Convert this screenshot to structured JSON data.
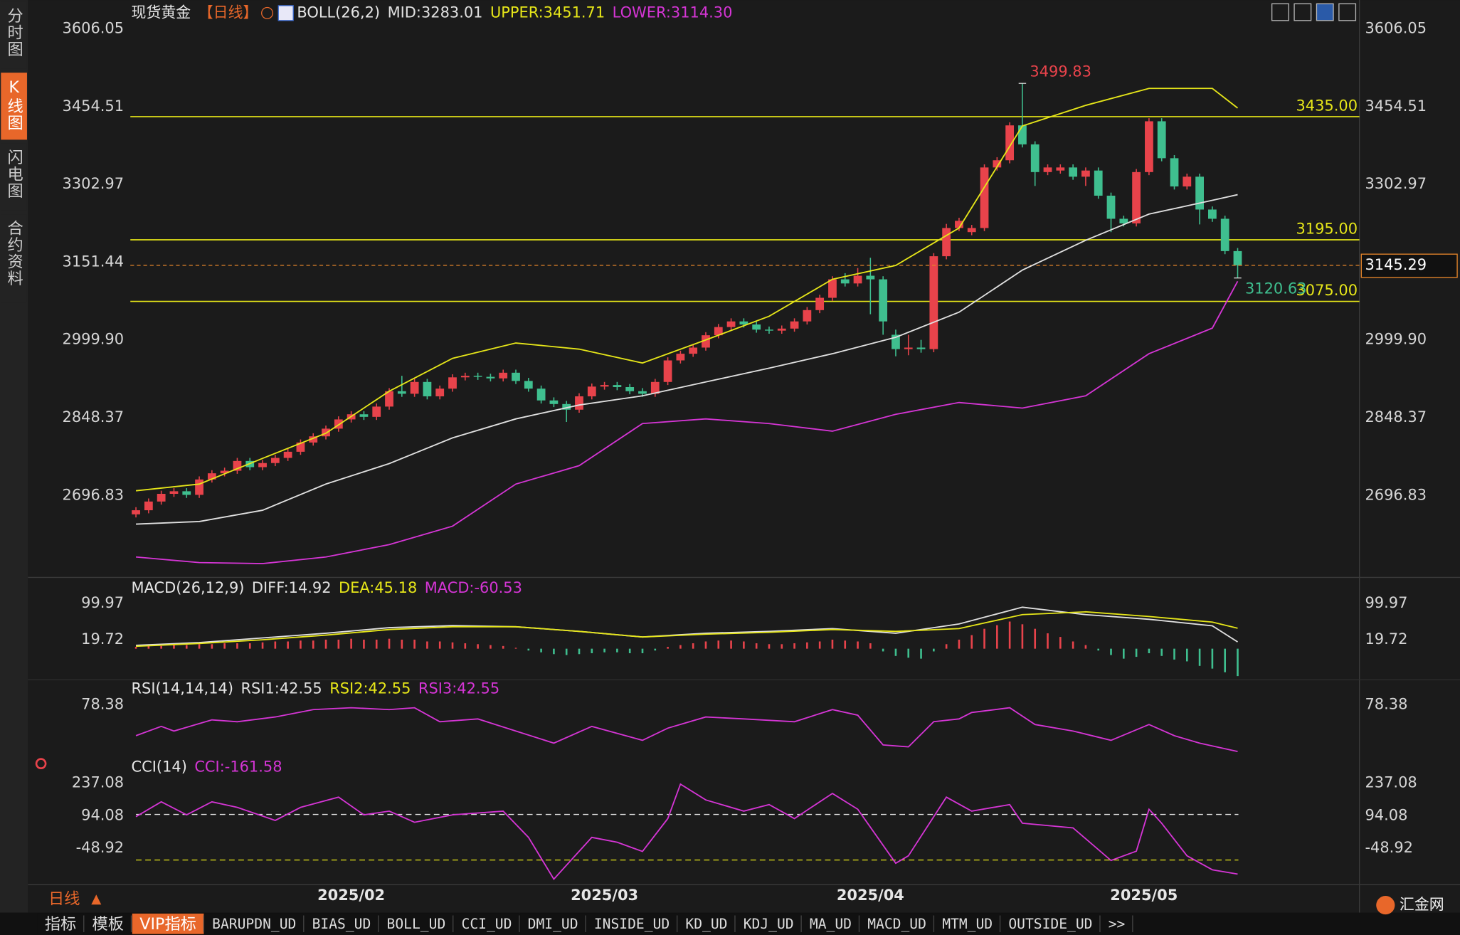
{
  "sidebar": {
    "tabs": [
      "分时图",
      "K线图",
      "闪电图",
      "合约资料"
    ],
    "active": 1
  },
  "chart_data": [
    {
      "type": "candlestick",
      "title": "现货黄金",
      "period": "【日线】",
      "indicator": "BOLL(26,2)",
      "up_color": "#e8434b",
      "down_color": "#3fbf8f",
      "open": [
        2660,
        2668,
        2685,
        2700,
        2705,
        2698,
        2728,
        2740,
        2745,
        2764,
        2752,
        2760,
        2770,
        2782,
        2800,
        2812,
        2827,
        2845,
        2855,
        2850,
        2870,
        2900,
        2895,
        2918,
        2890,
        2905,
        2927,
        2930,
        2928,
        2925,
        2936,
        2920,
        2905,
        2882,
        2875,
        2864,
        2890,
        2909,
        2912,
        2908,
        2900,
        2895,
        2918,
        2960,
        2973,
        2985,
        3009,
        3025,
        3036,
        3030,
        3020,
        3018,
        3022,
        3036,
        3058,
        3082,
        3118,
        3110,
        3125,
        3118,
        3010,
        2982,
        2985,
        2982,
        3163,
        3218,
        3210,
        3218,
        3336,
        3350,
        3418,
        3381,
        3327,
        3330,
        3336,
        3318,
        3330,
        3281,
        3236,
        3227,
        3327,
        3426,
        3354,
        3299,
        3318,
        3254,
        3236,
        3173
      ],
      "high": [
        2674,
        2691,
        2706,
        2711,
        2711,
        2734,
        2746,
        2751,
        2770,
        2770,
        2766,
        2776,
        2788,
        2806,
        2818,
        2833,
        2851,
        2861,
        2861,
        2876,
        2906,
        2930,
        2924,
        2924,
        2911,
        2933,
        2936,
        2936,
        2934,
        2942,
        2942,
        2926,
        2911,
        2888,
        2881,
        2896,
        2915,
        2918,
        2918,
        2914,
        2906,
        2924,
        2966,
        2979,
        2991,
        3015,
        3031,
        3042,
        3042,
        3036,
        3026,
        3028,
        3042,
        3064,
        3088,
        3124,
        3130,
        3140,
        3160,
        3124,
        3020,
        3010,
        3000,
        3169,
        3226,
        3238,
        3224,
        3342,
        3356,
        3424,
        3499.83,
        3387,
        3342,
        3342,
        3342,
        3336,
        3336,
        3287,
        3242,
        3333,
        3432,
        3432,
        3360,
        3324,
        3324,
        3260,
        3242,
        3179
      ],
      "low": [
        2654,
        2662,
        2679,
        2694,
        2692,
        2692,
        2722,
        2734,
        2739,
        2746,
        2746,
        2754,
        2764,
        2776,
        2794,
        2806,
        2821,
        2839,
        2844,
        2844,
        2864,
        2889,
        2889,
        2884,
        2884,
        2899,
        2921,
        2922,
        2919,
        2919,
        2914,
        2899,
        2876,
        2869,
        2840,
        2858,
        2884,
        2903,
        2902,
        2894,
        2889,
        2889,
        2912,
        2954,
        2967,
        2979,
        3003,
        3019,
        3024,
        3014,
        3012,
        3012,
        3016,
        3030,
        3052,
        3076,
        3104,
        3104,
        3050,
        3010,
        2968,
        2970,
        2975,
        2976,
        3157,
        3212,
        3204,
        3212,
        3330,
        3344,
        3375,
        3300,
        3321,
        3324,
        3312,
        3300,
        3275,
        3210,
        3221,
        3221,
        3321,
        3348,
        3293,
        3293,
        3225,
        3230,
        3167,
        3120.63
      ],
      "close": [
        2668,
        2685,
        2700,
        2705,
        2698,
        2728,
        2740,
        2745,
        2764,
        2752,
        2760,
        2770,
        2782,
        2800,
        2812,
        2827,
        2845,
        2855,
        2850,
        2870,
        2900,
        2895,
        2918,
        2890,
        2905,
        2927,
        2930,
        2928,
        2925,
        2936,
        2920,
        2905,
        2882,
        2875,
        2864,
        2890,
        2909,
        2912,
        2908,
        2900,
        2895,
        2918,
        2960,
        2973,
        2985,
        3009,
        3025,
        3036,
        3030,
        3020,
        3018,
        3022,
        3036,
        3058,
        3082,
        3118,
        3110,
        3125,
        3118,
        3036,
        2982,
        2985,
        2982,
        3163,
        3218,
        3232,
        3218,
        3336,
        3350,
        3418,
        3381,
        3327,
        3336,
        3336,
        3318,
        3330,
        3281,
        3236,
        3227,
        3327,
        3426,
        3354,
        3299,
        3318,
        3254,
        3236,
        3173,
        3145.29
      ],
      "series": [
        {
          "name": "MID:3283.01",
          "color": "#e0e0e0",
          "x": [
            0,
            5,
            10,
            15,
            20,
            25,
            30,
            35,
            40,
            45,
            50,
            55,
            60,
            65,
            70,
            75,
            80,
            85,
            87
          ],
          "values": [
            2641,
            2646,
            2668,
            2719,
            2759,
            2809,
            2846,
            2873,
            2891,
            2918,
            2945,
            2973,
            3005,
            3054,
            3136,
            3194,
            3245,
            3272,
            3283.01
          ]
        },
        {
          "name": "UPPER:3451.71",
          "color": "#e6e619",
          "x": [
            0,
            5,
            10,
            15,
            20,
            25,
            30,
            35,
            40,
            45,
            50,
            55,
            60,
            65,
            70,
            75,
            80,
            85,
            87
          ],
          "values": [
            2706,
            2719,
            2769,
            2818,
            2900,
            2964,
            2994,
            2982,
            2955,
            3000,
            3046,
            3118,
            3145,
            3218,
            3417,
            3457,
            3490,
            3490,
            3451.71
          ]
        },
        {
          "name": "LOWER:3114.30",
          "color": "#d535d5",
          "x": [
            0,
            5,
            10,
            15,
            20,
            25,
            30,
            35,
            40,
            45,
            50,
            55,
            60,
            65,
            70,
            75,
            80,
            85,
            87
          ],
          "values": [
            2577,
            2566,
            2564,
            2577,
            2601,
            2637,
            2719,
            2755,
            2837,
            2846,
            2837,
            2822,
            2855,
            2878,
            2867,
            2891,
            2973,
            3023,
            3114.3
          ]
        }
      ],
      "levels": [
        {
          "value": 3435,
          "label": "3435.00"
        },
        {
          "value": 3195,
          "label": "3195.00"
        },
        {
          "value": 3075,
          "label": "3075.00"
        }
      ],
      "level_color": "#e6e619",
      "last_price": 3145.29,
      "last_color": "#e8872a",
      "ylim": [
        2540.8,
        3653.2
      ],
      "yticks": [
        3606.05,
        3454.51,
        3302.97,
        3151.44,
        {
          "value": 2999.9,
          "label": "2999.90"
        },
        2848.37,
        2696.83
      ],
      "x_labels": [
        {
          "index": 17,
          "label": "2025/02"
        },
        {
          "index": 37,
          "label": "2025/03"
        },
        {
          "index": 58,
          "label": "2025/04"
        },
        {
          "index": 79.6,
          "label": "2025/05"
        }
      ]
    },
    {
      "type": "macd",
      "title": "MACD(26,12,9)",
      "series": [
        {
          "name": "DIFF:14.92",
          "color": "#e0e0e0",
          "x": [
            0,
            5,
            10,
            15,
            20,
            25,
            30,
            35,
            40,
            45,
            50,
            55,
            60,
            65,
            70,
            75,
            80,
            85,
            87
          ],
          "values": [
            7.4,
            13.5,
            23.8,
            34.1,
            46.5,
            51.1,
            48.5,
            38.2,
            25.9,
            34.1,
            38.2,
            44.4,
            34.1,
            54.7,
            91.7,
            75.3,
            65.0,
            50.6,
            14.92
          ]
        },
        {
          "name": "DEA:45.18",
          "color": "#e6e619",
          "x": [
            0,
            5,
            10,
            15,
            20,
            25,
            30,
            35,
            40,
            45,
            50,
            55,
            60,
            65,
            70,
            75,
            80,
            85,
            87
          ],
          "values": [
            5.3,
            11.5,
            19.7,
            30.0,
            42.4,
            48.5,
            48.5,
            38.2,
            25.9,
            32.1,
            36.2,
            42.4,
            38.2,
            44.4,
            75.3,
            81.4,
            71.2,
            58.8,
            45.18
          ]
        }
      ],
      "hist_name": "MACD:-60.53",
      "hist_color": "#d535d5",
      "hist_values": [
        4,
        6,
        6,
        8,
        8,
        10,
        10,
        12,
        12,
        12,
        14,
        16,
        16,
        18,
        18,
        20,
        20,
        22,
        20,
        20,
        22,
        20,
        20,
        16,
        16,
        14,
        12,
        10,
        8,
        6,
        2,
        -4,
        -8,
        -12,
        -14,
        -12,
        -10,
        -8,
        -8,
        -10,
        -10,
        -4,
        4,
        8,
        12,
        16,
        18,
        18,
        16,
        12,
        10,
        10,
        12,
        14,
        16,
        20,
        18,
        16,
        12,
        -6,
        -16,
        -20,
        -22,
        -6,
        10,
        20,
        30,
        44,
        52,
        60,
        54,
        44,
        34,
        26,
        16,
        8,
        -4,
        -14,
        -22,
        -18,
        -10,
        -16,
        -24,
        -28,
        -38,
        -44,
        -52,
        -60.53
      ],
      "ylim": [
        -62.6,
        153.5
      ],
      "yticks": [
        99.97,
        19.72
      ]
    },
    {
      "type": "line",
      "title": "RSI(14,14,14)",
      "series": [
        {
          "name": "RSI1:42.55",
          "color": "#e0e0e0"
        },
        {
          "name": "RSI2:42.55",
          "color": "#e6e619"
        },
        {
          "name": "RSI3:42.55",
          "color": "#d535d5",
          "x": [
            0,
            2,
            3,
            6,
            8,
            11,
            14,
            17,
            20,
            22,
            24,
            27,
            30,
            33,
            36,
            40,
            42,
            45,
            48,
            52,
            55,
            57,
            59,
            61,
            63,
            65,
            66,
            69,
            71,
            74,
            77,
            80,
            82,
            84,
            87
          ],
          "values": [
            54.7,
            61.9,
            58.3,
            66.9,
            65.5,
            69.1,
            74.8,
            76.2,
            74.8,
            76.2,
            65.5,
            67.6,
            58.3,
            49.0,
            61.9,
            51.1,
            60.5,
            69.1,
            67.6,
            65.5,
            74.8,
            70.5,
            47.6,
            46.1,
            65.5,
            67.6,
            72.6,
            76.2,
            63.3,
            58.3,
            51.1,
            63.3,
            54.7,
            49.0,
            42.55
          ]
        }
      ],
      "ylim": [
        33.2,
        95.6
      ],
      "yticks": [
        78.38
      ]
    },
    {
      "type": "line",
      "title": "CCI(14)",
      "series": [
        {
          "name": "CCI:-161.58",
          "color": "#d535d5",
          "x": [
            0,
            2,
            4,
            6,
            8,
            11,
            13,
            16,
            18,
            20,
            22,
            25,
            29,
            31,
            33,
            36,
            38,
            40,
            42,
            43,
            45,
            48,
            50,
            52,
            55,
            57,
            60,
            61,
            64,
            66,
            69,
            70,
            74,
            77,
            79,
            80,
            81,
            83,
            85,
            87
          ],
          "values": [
            90.0,
            155.4,
            98.2,
            155.4,
            130.9,
            73.6,
            130.9,
            175.8,
            98.2,
            114.5,
            65.5,
            98.2,
            114.5,
            -0.9,
            -183.8,
            -0.9,
            -21.9,
            -62.3,
            81.8,
            233.0,
            163.5,
            114.5,
            143.1,
            81.8,
            192.1,
            122.7,
            -114.3,
            -81.6,
            175.8,
            114.5,
            143.1,
            61.4,
            41.0,
            -102.0,
            -61.2,
            122.7,
            61.4,
            -81.6,
            -142.9,
            -161.58
          ]
        }
      ],
      "ref_lines": [
        {
          "value": 100,
          "color": "#e0e0e0"
        },
        {
          "value": -100,
          "color": "#e6e619"
        }
      ],
      "ylim": [
        -200.1,
        269.8
      ],
      "yticks": [
        237.08,
        94.08,
        -48.92
      ]
    }
  ],
  "bottom_bar": {
    "period": "日线",
    "tabs": [
      "指标",
      "模板",
      "VIP指标",
      "BARUPDN_UD",
      "BIAS_UD",
      "BOLL_UD",
      "CCI_UD",
      "DMI_UD",
      "INSIDE_UD",
      "KD_UD",
      "KDJ_UD",
      "MA_UD",
      "MACD_UD",
      "MTM_UD",
      "OUTSIDE_UD",
      ">>"
    ],
    "active": 2,
    "logo": "汇金网"
  }
}
